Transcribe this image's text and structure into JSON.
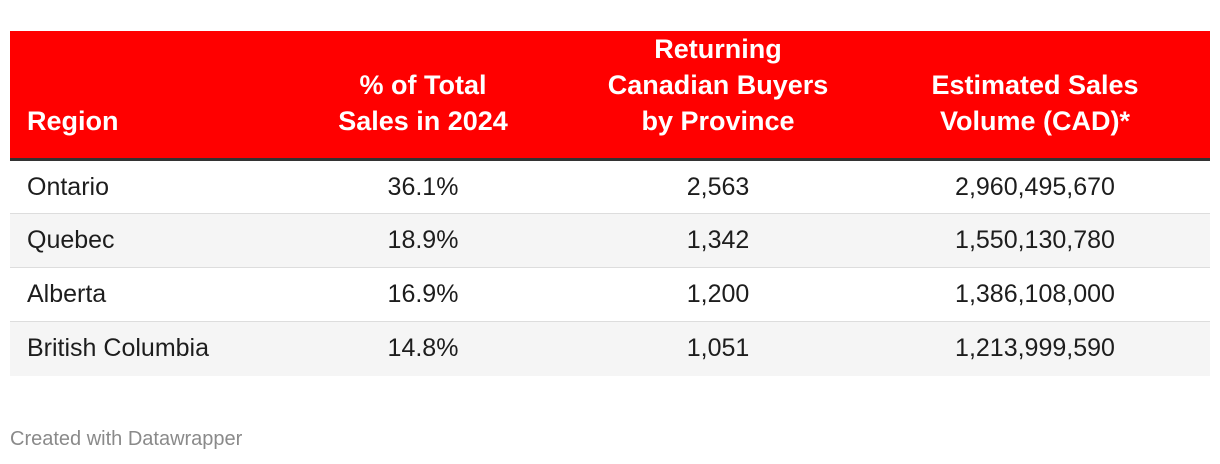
{
  "table": {
    "headers": [
      "Region",
      "% of Total Sales in 2024",
      "Returning Canadian Buyers by Province",
      "Estimated Sales Volume (CAD)*"
    ],
    "header_lines": [
      [
        "Region"
      ],
      [
        "% of Total",
        "Sales in 2024"
      ],
      [
        "Returning",
        "Canadian Buyers",
        "by Province"
      ],
      [
        "Estimated Sales",
        "Volume (CAD)*"
      ]
    ],
    "rows": [
      [
        "Ontario",
        "36.1%",
        "2,563",
        "2,960,495,670"
      ],
      [
        "Quebec",
        "18.9%",
        "1,342",
        "1,550,130,780"
      ],
      [
        "Alberta",
        "16.9%",
        "1,200",
        "1,386,108,000"
      ],
      [
        "British Columbia",
        "14.8%",
        "1,051",
        "1,213,999,590"
      ]
    ]
  },
  "footer": {
    "credit": "Created with Datawrapper"
  },
  "colors": {
    "header_bg": "#ff0000",
    "header_text": "#ffffff",
    "header_rule": "#333333",
    "row_alt_bg": "#f5f5f5",
    "footer_text": "#8a8a8a"
  }
}
